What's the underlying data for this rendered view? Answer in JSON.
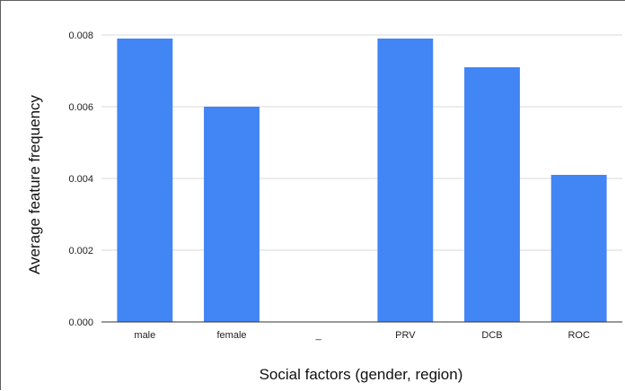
{
  "chart_data": {
    "type": "bar",
    "categories": [
      "male",
      "female",
      "_",
      "PRV",
      "DCB",
      "ROC"
    ],
    "values": [
      0.0079,
      0.006,
      0,
      0.0079,
      0.0071,
      0.0041
    ],
    "title": "",
    "xlabel": "Social factors (gender, region)",
    "ylabel": "Average feature frequency",
    "ylim": [
      0,
      0.008
    ],
    "yticks": [
      "0.000",
      "0.002",
      "0.004",
      "0.006",
      "0.008"
    ],
    "ytick_values": [
      0,
      0.002,
      0.004,
      0.006,
      0.008
    ],
    "grid": true,
    "legend": "none",
    "bar_color": "#4285f4",
    "grid_color": "#d9d9d9",
    "axis_color": "#333333"
  }
}
